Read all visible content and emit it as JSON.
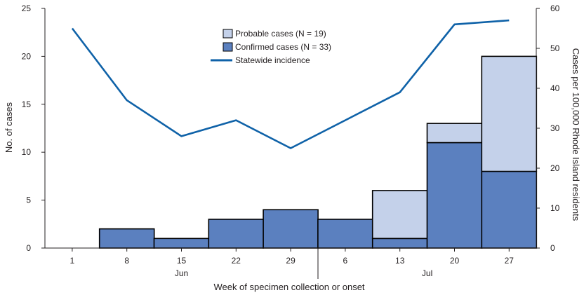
{
  "chart_data": {
    "type": "bar",
    "title": "",
    "x_categories": [
      "1",
      "8",
      "15",
      "22",
      "29",
      "6",
      "13",
      "20",
      "27"
    ],
    "month_labels": [
      {
        "label": "Jun",
        "at_category": 2
      },
      {
        "label": "Jul",
        "at_category": 6.5
      }
    ],
    "month_boundary_after_category": 4.5,
    "xlabel": "Week of specimen collection or onset",
    "ylabel": "No. of cases",
    "ylabel_right": "Cases per 100,000 Rhode Island residents",
    "y_ticks": [
      0,
      5,
      10,
      15,
      20,
      25
    ],
    "ylim": [
      0,
      25
    ],
    "y2_ticks": [
      0,
      10,
      20,
      30,
      40,
      50,
      60
    ],
    "y2lim": [
      0,
      60
    ],
    "series": [
      {
        "name": "Confirmed cases (N = 33)",
        "kind": "bar",
        "color": "#5b80bf",
        "values": [
          0,
          2,
          1,
          3,
          4,
          3,
          1,
          11,
          8
        ]
      },
      {
        "name": "Probable cases (N = 19)",
        "kind": "bar",
        "color": "#c4d1ea",
        "values": [
          0,
          0,
          0,
          0,
          0,
          0,
          5,
          2,
          12
        ]
      },
      {
        "name": "Statewide incidence",
        "kind": "line",
        "axis": "right",
        "color": "#0f62a8",
        "values": [
          55,
          37,
          28,
          32,
          25,
          32,
          39,
          56,
          57
        ]
      }
    ],
    "legend": [
      {
        "label": "Probable cases (N = 19)",
        "swatch": "box",
        "color": "#c4d1ea"
      },
      {
        "label": "Confirmed cases (N = 33)",
        "swatch": "box",
        "color": "#5b80bf"
      },
      {
        "label": "Statewide incidence",
        "swatch": "line",
        "color": "#0f62a8"
      }
    ],
    "legend_position": "top-center"
  }
}
